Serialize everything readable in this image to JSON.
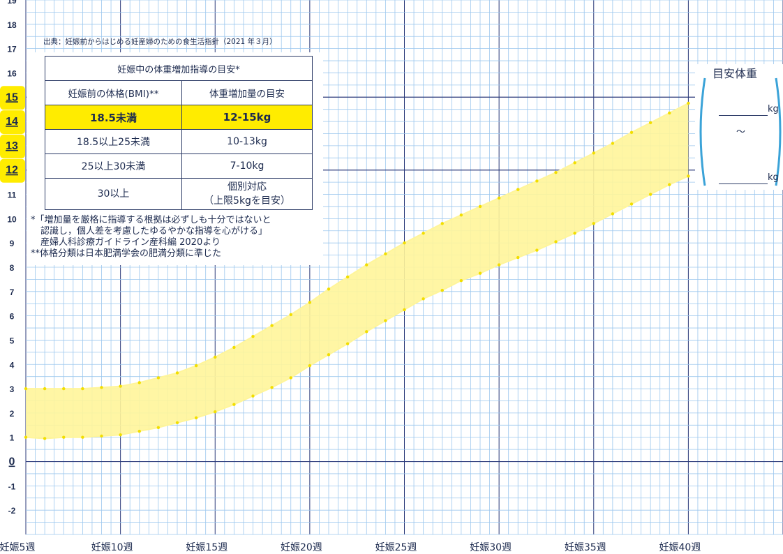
{
  "chart_data": {
    "type": "area",
    "x": [
      5,
      6,
      7,
      8,
      9,
      10,
      11,
      12,
      13,
      14,
      15,
      16,
      17,
      18,
      19,
      20,
      21,
      22,
      23,
      24,
      25,
      26,
      27,
      28,
      29,
      30,
      31,
      32,
      33,
      34,
      35,
      36,
      37,
      38,
      39,
      40
    ],
    "series": [
      {
        "name": "",
        "values": [
          1.0,
          0.95,
          1.0,
          1.0,
          1.05,
          1.1,
          1.25,
          1.4,
          1.6,
          1.8,
          2.05,
          2.35,
          2.7,
          3.05,
          3.45,
          3.95,
          4.4,
          4.85,
          5.35,
          5.8,
          6.25,
          6.7,
          7.05,
          7.45,
          7.75,
          8.1,
          8.4,
          8.7,
          9.05,
          9.4,
          9.8,
          10.2,
          10.6,
          11.0,
          11.4,
          11.75
        ]
      },
      {
        "name": "",
        "values": [
          3.0,
          3.0,
          3.0,
          3.0,
          3.05,
          3.1,
          3.25,
          3.45,
          3.65,
          3.95,
          4.3,
          4.7,
          5.15,
          5.6,
          6.05,
          6.55,
          7.1,
          7.6,
          8.1,
          8.55,
          9.0,
          9.4,
          9.8,
          10.15,
          10.5,
          10.85,
          11.2,
          11.55,
          11.9,
          12.3,
          12.7,
          13.1,
          13.55,
          13.95,
          14.35,
          14.75
        ]
      }
    ],
    "ylim": [
      -3,
      19
    ],
    "xlim": [
      5,
      45
    ],
    "y_ticks": [
      "-2",
      "-1",
      "0",
      "1",
      "2",
      "3",
      "4",
      "5",
      "6",
      "7",
      "8",
      "9",
      "10",
      "11",
      "12",
      "13",
      "14",
      "15",
      "16",
      "17",
      "18",
      "19"
    ],
    "highlight_y_ticks": [
      "12",
      "13",
      "14",
      "15"
    ],
    "x_ticks": [
      {
        "value": 5,
        "label": "妊娠5週"
      },
      {
        "value": 10,
        "label": "妊娠10週"
      },
      {
        "value": 15,
        "label": "妊娠15週"
      },
      {
        "value": 20,
        "label": "妊娠20週"
      },
      {
        "value": 25,
        "label": "妊娠25週"
      },
      {
        "value": 30,
        "label": "妊娠30週"
      },
      {
        "value": 35,
        "label": "妊娠35週"
      },
      {
        "value": 40,
        "label": "妊娠40週"
      }
    ],
    "band_color": "#fff59a",
    "point_color": "#f2de00",
    "grid": true,
    "grid_color": "#9cc7ee",
    "major_grid_color": "#2b3a7a"
  },
  "source_text": "出典：妊娠前からはじめる妊産婦のための食生活指針（2021 年３月）",
  "table": {
    "caption": "妊娠中の体重増加指導の目安*",
    "headers": [
      "妊娠前の体格(BMI)**",
      "体重増加量の目安"
    ],
    "rows": [
      {
        "bmi": "18.5未満",
        "gain": "12-15kg"
      },
      {
        "bmi": "18.5以上25未満",
        "gain": "10-13kg"
      },
      {
        "bmi": "25以上30未満",
        "gain": "7-10kg"
      },
      {
        "bmi": "30以上",
        "gain": "個別対応",
        "gain2": "（上限5kgを目安）"
      }
    ]
  },
  "notes": {
    "line1": "*「増加量を厳格に指導する根拠は必ずしも十分ではないと",
    "line2": "認識し，個人差を考慮したゆるやかな指導を心がける」",
    "line3": "産婦人科診療ガイドライン産科編 2020より",
    "line4": "**体格分類は日本肥満学会の肥満分類に準じた"
  },
  "target": {
    "title": "目安体重",
    "unit1": "kg",
    "tilde": "～",
    "unit2": "kg"
  },
  "colors": {
    "accent_blue": "#3ba3d8",
    "highlight_yellow": "#ffec00",
    "text_navy": "#1d2b4f"
  }
}
